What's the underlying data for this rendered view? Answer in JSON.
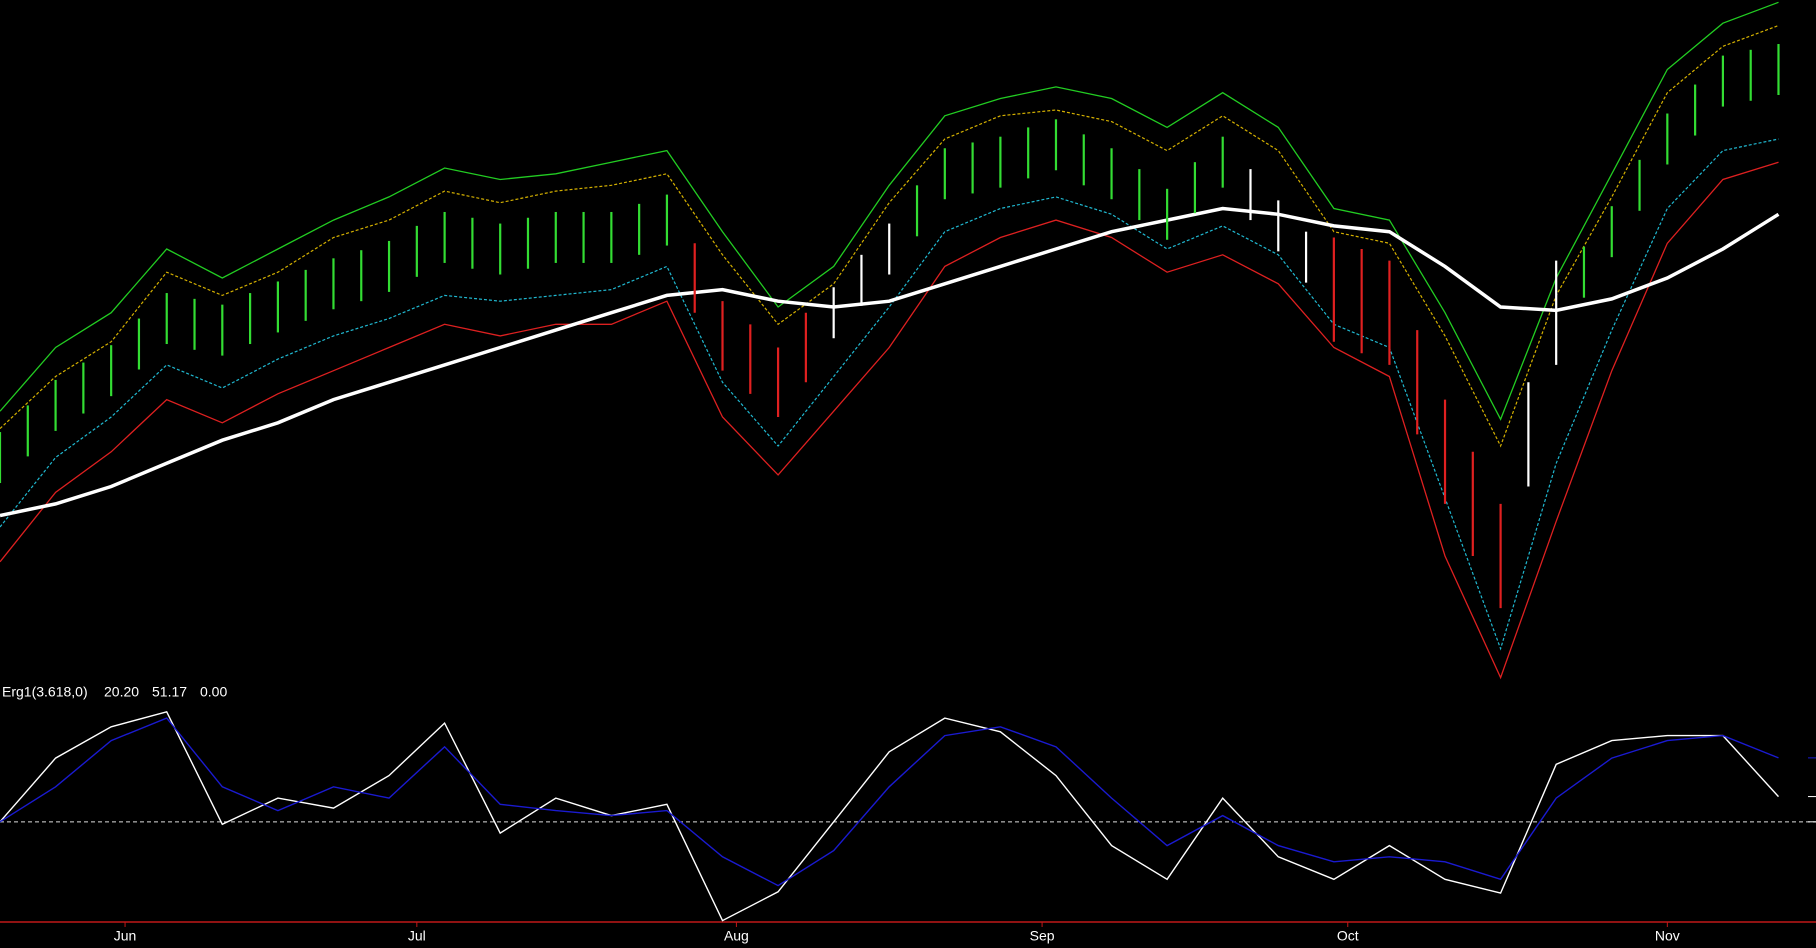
{
  "chart_data": [
    {
      "type": "ohlc",
      "xlim": [
        0,
        130.7
      ],
      "ylim": [
        0,
        600
      ],
      "x": [
        0,
        2,
        4,
        6,
        8,
        10,
        12,
        14,
        16,
        18,
        20,
        22,
        24,
        26,
        28,
        30,
        32,
        34,
        36,
        38,
        40,
        42,
        44,
        46,
        48,
        50,
        52,
        54,
        56,
        58,
        60,
        62,
        64,
        66,
        68,
        70,
        72,
        74,
        76,
        78,
        80,
        82,
        84,
        86,
        88,
        90,
        92,
        94,
        96,
        98,
        100,
        102,
        104,
        106,
        108,
        110,
        112,
        114,
        116,
        118,
        120,
        122,
        124,
        126,
        128
      ],
      "high": [
        227,
        250,
        272,
        287,
        302,
        325,
        347,
        342,
        337,
        347,
        357,
        367,
        377,
        384,
        392,
        405,
        417,
        412,
        407,
        412,
        417,
        417,
        417,
        424,
        432,
        390,
        340,
        320,
        300,
        330,
        352,
        380,
        407,
        440,
        472,
        477,
        482,
        490,
        497,
        484,
        472,
        454,
        437,
        460,
        482,
        454,
        427,
        400,
        395,
        385,
        375,
        315,
        255,
        210,
        165,
        270,
        375,
        387,
        422,
        462,
        502,
        527,
        552,
        557,
        562
      ],
      "low": [
        183,
        206,
        228,
        243,
        258,
        281,
        303,
        298,
        293,
        303,
        313,
        323,
        333,
        340,
        348,
        361,
        373,
        368,
        363,
        368,
        373,
        373,
        373,
        380,
        388,
        330,
        280,
        260,
        240,
        270,
        308,
        336,
        363,
        396,
        428,
        433,
        438,
        446,
        453,
        440,
        428,
        410,
        393,
        416,
        438,
        410,
        383,
        356,
        305,
        295,
        285,
        225,
        165,
        120,
        75,
        180,
        285,
        343,
        378,
        418,
        458,
        483,
        508,
        513,
        518
      ],
      "bar_colors": [
        "#33dd33",
        "#33dd33",
        "#33dd33",
        "#33dd33",
        "#33dd33",
        "#33dd33",
        "#33dd33",
        "#33dd33",
        "#33dd33",
        "#33dd33",
        "#33dd33",
        "#33dd33",
        "#33dd33",
        "#33dd33",
        "#33dd33",
        "#33dd33",
        "#33dd33",
        "#33dd33",
        "#33dd33",
        "#33dd33",
        "#33dd33",
        "#33dd33",
        "#33dd33",
        "#33dd33",
        "#33dd33",
        "#e02020",
        "#e02020",
        "#e02020",
        "#e02020",
        "#e02020",
        "#ffffff",
        "#ffffff",
        "#ffffff",
        "#33dd33",
        "#33dd33",
        "#33dd33",
        "#33dd33",
        "#33dd33",
        "#33dd33",
        "#33dd33",
        "#33dd33",
        "#33dd33",
        "#33dd33",
        "#33dd33",
        "#33dd33",
        "#ffffff",
        "#ffffff",
        "#ffffff",
        "#e02020",
        "#e02020",
        "#e02020",
        "#e02020",
        "#e02020",
        "#e02020",
        "#e02020",
        "#ffffff",
        "#ffffff",
        "#33dd33",
        "#33dd33",
        "#33dd33",
        "#33dd33",
        "#33dd33",
        "#33dd33",
        "#33dd33",
        "#33dd33"
      ],
      "lines": [
        {
          "color": "#22cc22",
          "dashed": false,
          "width": 1.3,
          "x": [
            0,
            4,
            8,
            12,
            16,
            20,
            24,
            28,
            32,
            36,
            40,
            44,
            48,
            52,
            56,
            60,
            64,
            68,
            72,
            76,
            80,
            84,
            88,
            92,
            96,
            100,
            104,
            108,
            112,
            116,
            120,
            124,
            128
          ],
          "values": [
            245,
            300,
            330,
            385,
            360,
            385,
            410,
            430,
            455,
            445,
            450,
            460,
            470,
            400,
            335,
            370,
            440,
            500,
            515,
            525,
            515,
            490,
            520,
            490,
            420,
            410,
            330,
            238,
            360,
            450,
            540,
            580,
            598
          ]
        },
        {
          "color": "#d4b000",
          "dashed": true,
          "width": 1.2,
          "x": [
            0,
            4,
            8,
            12,
            16,
            20,
            24,
            28,
            32,
            36,
            40,
            44,
            48,
            52,
            56,
            60,
            64,
            68,
            72,
            76,
            80,
            84,
            88,
            92,
            96,
            100,
            104,
            108,
            112,
            116,
            120,
            124,
            128
          ],
          "values": [
            230,
            275,
            305,
            365,
            345,
            365,
            395,
            410,
            435,
            425,
            435,
            440,
            450,
            380,
            320,
            355,
            425,
            480,
            500,
            505,
            495,
            470,
            500,
            470,
            400,
            390,
            310,
            215,
            345,
            430,
            520,
            560,
            578
          ]
        },
        {
          "color": "#20b8d0",
          "dashed": true,
          "width": 1.2,
          "x": [
            0,
            4,
            8,
            12,
            16,
            20,
            24,
            28,
            32,
            36,
            40,
            44,
            48,
            52,
            56,
            60,
            64,
            68,
            72,
            76,
            80,
            84,
            88,
            92,
            96,
            100,
            104,
            108,
            112,
            116,
            120,
            124,
            128
          ],
          "values": [
            145,
            205,
            240,
            285,
            265,
            290,
            310,
            325,
            345,
            340,
            345,
            350,
            370,
            270,
            215,
            275,
            335,
            400,
            420,
            430,
            415,
            385,
            405,
            380,
            320,
            300,
            170,
            40,
            200,
            315,
            420,
            470,
            480
          ]
        },
        {
          "color": "#dd2020",
          "dashed": false,
          "width": 1.3,
          "x": [
            0,
            4,
            8,
            12,
            16,
            20,
            24,
            28,
            32,
            36,
            40,
            44,
            48,
            52,
            56,
            60,
            64,
            68,
            72,
            76,
            80,
            84,
            88,
            92,
            96,
            100,
            104,
            108,
            112,
            116,
            120,
            124,
            128
          ],
          "values": [
            115,
            175,
            210,
            255,
            235,
            260,
            280,
            300,
            320,
            310,
            320,
            320,
            340,
            240,
            190,
            245,
            300,
            370,
            395,
            410,
            395,
            365,
            380,
            355,
            300,
            275,
            120,
            15,
            150,
            280,
            390,
            445,
            460
          ]
        },
        {
          "color": "#ffffff",
          "dashed": false,
          "width": 3.5,
          "x": [
            0,
            4,
            8,
            12,
            16,
            20,
            24,
            28,
            32,
            36,
            40,
            44,
            48,
            52,
            56,
            60,
            64,
            68,
            72,
            76,
            80,
            84,
            88,
            92,
            96,
            100,
            104,
            108,
            112,
            116,
            120,
            124,
            128
          ],
          "values": [
            155,
            165,
            180,
            200,
            220,
            235,
            255,
            270,
            285,
            300,
            315,
            330,
            345,
            350,
            340,
            335,
            340,
            355,
            370,
            385,
            400,
            410,
            420,
            415,
            405,
            400,
            370,
            335,
            332,
            342,
            360,
            385,
            415
          ]
        }
      ]
    },
    {
      "type": "line",
      "title": "Erg1(3.618,0)",
      "xlim": [
        0,
        130.7
      ],
      "ylim": [
        -80,
        97
      ],
      "x": [
        0,
        4,
        8,
        12,
        16,
        20,
        24,
        28,
        32,
        36,
        40,
        44,
        48,
        52,
        56,
        60,
        64,
        68,
        72,
        76,
        80,
        84,
        88,
        92,
        96,
        100,
        104,
        108,
        112,
        116,
        120,
        124,
        128
      ],
      "series": [
        {
          "color": "#ffffff",
          "values": [
            0,
            51,
            76,
            88,
            -2,
            19,
            11,
            37,
            79,
            -9,
            19,
            5,
            14,
            -79,
            -56,
            0,
            56,
            83,
            72,
            37,
            -19,
            -46,
            19,
            -28,
            -46,
            -19,
            -46,
            -57,
            46,
            65,
            69,
            69,
            20.2
          ]
        },
        {
          "color": "#1a1ad0",
          "values": [
            0,
            28,
            65,
            83,
            28,
            9,
            28,
            19,
            60,
            14,
            9,
            5,
            9,
            -28,
            -51,
            -23,
            28,
            69,
            76,
            60,
            19,
            -19,
            5,
            -19,
            -32,
            -28,
            -32,
            -46,
            19,
            51,
            65,
            69,
            51.17
          ]
        }
      ],
      "readouts": [
        {
          "value": 20.2,
          "label": "20.20",
          "color": "#ffffff"
        },
        {
          "value": 51.17,
          "label": "51.17",
          "color": "#1a1ad0"
        },
        {
          "value": 0,
          "label": "0.00",
          "color": "#ffffff"
        }
      ],
      "xticks": [
        {
          "value": 9,
          "label": "Jun"
        },
        {
          "value": 30,
          "label": "Jul"
        },
        {
          "value": 53,
          "label": "Aug"
        },
        {
          "value": 75,
          "label": "Sep"
        },
        {
          "value": 97,
          "label": "Oct"
        },
        {
          "value": 120,
          "label": "Nov"
        }
      ]
    }
  ]
}
